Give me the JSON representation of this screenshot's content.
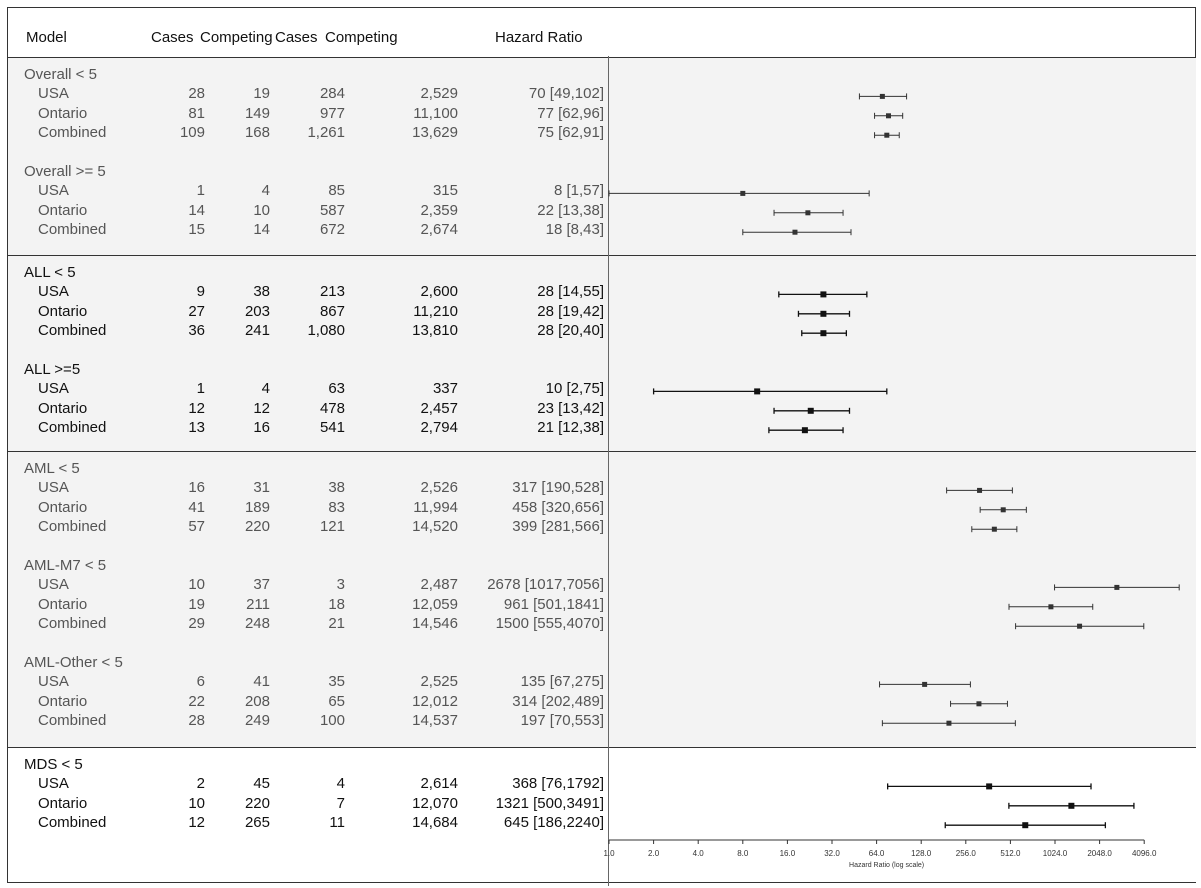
{
  "header": {
    "model": "Model",
    "cases1": "Cases",
    "competing1": "Competing",
    "cases2": "Cases",
    "competing2": "Competing",
    "hazard": "Hazard Ratio"
  },
  "chart_data": {
    "type": "forest",
    "xlabel": "Hazard Ratio (log scale)",
    "x_scale": "log2",
    "xlim": [
      1,
      4096
    ],
    "x_ticks": [
      "1.0",
      "2.0",
      "4.0",
      "8.0",
      "16.0",
      "32.0",
      "64.0",
      "128.0",
      "256.0",
      "512.0",
      "1024.0",
      "2048.0",
      "4096.0"
    ],
    "bands": [
      {
        "groups": [
          {
            "title": "Overall < 5",
            "rows": [
              {
                "label": "USA",
                "cases1": "28",
                "comp1": "19",
                "cases2": "284",
                "comp2": "2,529",
                "hr_text": "70 [49,102]",
                "hr": 70,
                "lo": 49,
                "hi": 102
              },
              {
                "label": "Ontario",
                "cases1": "81",
                "comp1": "149",
                "cases2": "977",
                "comp2": "11,100",
                "hr_text": "77 [62,96]",
                "hr": 77,
                "lo": 62,
                "hi": 96
              },
              {
                "label": "Combined",
                "cases1": "109",
                "comp1": "168",
                "cases2": "1,261",
                "comp2": "13,629",
                "hr_text": "75 [62,91]",
                "hr": 75,
                "lo": 62,
                "hi": 91
              }
            ]
          },
          {
            "title": "Overall >= 5",
            "rows": [
              {
                "label": "USA",
                "cases1": "1",
                "comp1": "4",
                "cases2": "85",
                "comp2": "315",
                "hr_text": "8 [1,57]",
                "hr": 8,
                "lo": 1,
                "hi": 57
              },
              {
                "label": "Ontario",
                "cases1": "14",
                "comp1": "10",
                "cases2": "587",
                "comp2": "2,359",
                "hr_text": "22 [13,38]",
                "hr": 22,
                "lo": 13,
                "hi": 38
              },
              {
                "label": "Combined",
                "cases1": "15",
                "comp1": "14",
                "cases2": "672",
                "comp2": "2,674",
                "hr_text": "18 [8,43]",
                "hr": 18,
                "lo": 8,
                "hi": 43
              }
            ]
          }
        ]
      },
      {
        "groups": [
          {
            "title": "ALL < 5",
            "rows": [
              {
                "label": "USA",
                "cases1": "9",
                "comp1": "38",
                "cases2": "213",
                "comp2": "2,600",
                "hr_text": "28 [14,55]",
                "hr": 28,
                "lo": 14,
                "hi": 55
              },
              {
                "label": "Ontario",
                "cases1": "27",
                "comp1": "203",
                "cases2": "867",
                "comp2": "11,210",
                "hr_text": "28 [19,42]",
                "hr": 28,
                "lo": 19,
                "hi": 42
              },
              {
                "label": "Combined",
                "cases1": "36",
                "comp1": "241",
                "cases2": "1,080",
                "comp2": "13,810",
                "hr_text": "28 [20,40]",
                "hr": 28,
                "lo": 20,
                "hi": 40
              }
            ]
          },
          {
            "title": "ALL >=5",
            "rows": [
              {
                "label": "USA",
                "cases1": "1",
                "comp1": "4",
                "cases2": "63",
                "comp2": "337",
                "hr_text": "10 [2,75]",
                "hr": 10,
                "lo": 2,
                "hi": 75
              },
              {
                "label": "Ontario",
                "cases1": "12",
                "comp1": "12",
                "cases2": "478",
                "comp2": "2,457",
                "hr_text": "23 [13,42]",
                "hr": 23,
                "lo": 13,
                "hi": 42
              },
              {
                "label": "Combined",
                "cases1": "13",
                "comp1": "16",
                "cases2": "541",
                "comp2": "2,794",
                "hr_text": "21 [12,38]",
                "hr": 21,
                "lo": 12,
                "hi": 38
              }
            ]
          }
        ]
      },
      {
        "groups": [
          {
            "title": "AML < 5",
            "rows": [
              {
                "label": "USA",
                "cases1": "16",
                "comp1": "31",
                "cases2": "38",
                "comp2": "2,526",
                "hr_text": "317 [190,528]",
                "hr": 317,
                "lo": 190,
                "hi": 528
              },
              {
                "label": "Ontario",
                "cases1": "41",
                "comp1": "189",
                "cases2": "83",
                "comp2": "11,994",
                "hr_text": "458 [320,656]",
                "hr": 458,
                "lo": 320,
                "hi": 656
              },
              {
                "label": "Combined",
                "cases1": "57",
                "comp1": "220",
                "cases2": "121",
                "comp2": "14,520",
                "hr_text": "399 [281,566]",
                "hr": 399,
                "lo": 281,
                "hi": 566
              }
            ]
          },
          {
            "title": "AML-M7 < 5",
            "rows": [
              {
                "label": "USA",
                "cases1": "10",
                "comp1": "37",
                "cases2": "3",
                "comp2": "2,487",
                "hr_text": "2678 [1017,7056]",
                "hr": 2678,
                "lo": 1017,
                "hi": 7056
              },
              {
                "label": "Ontario",
                "cases1": "19",
                "comp1": "211",
                "cases2": "18",
                "comp2": "12,059",
                "hr_text": "961 [501,1841]",
                "hr": 961,
                "lo": 501,
                "hi": 1841
              },
              {
                "label": "Combined",
                "cases1": "29",
                "comp1": "248",
                "cases2": "21",
                "comp2": "14,546",
                "hr_text": "1500 [555,4070]",
                "hr": 1500,
                "lo": 555,
                "hi": 4070
              }
            ]
          },
          {
            "title": "AML-Other < 5",
            "rows": [
              {
                "label": "USA",
                "cases1": "6",
                "comp1": "41",
                "cases2": "35",
                "comp2": "2,525",
                "hr_text": "135 [67,275]",
                "hr": 135,
                "lo": 67,
                "hi": 275
              },
              {
                "label": "Ontario",
                "cases1": "22",
                "comp1": "208",
                "cases2": "65",
                "comp2": "12,012",
                "hr_text": "314 [202,489]",
                "hr": 314,
                "lo": 202,
                "hi": 489
              },
              {
                "label": "Combined",
                "cases1": "28",
                "comp1": "249",
                "cases2": "100",
                "comp2": "14,537",
                "hr_text": "197 [70,553]",
                "hr": 197,
                "lo": 70,
                "hi": 553
              }
            ]
          }
        ]
      },
      {
        "groups": [
          {
            "title": "MDS < 5",
            "rows": [
              {
                "label": "USA",
                "cases1": "2",
                "comp1": "45",
                "cases2": "4",
                "comp2": "2,614",
                "hr_text": "368 [76,1792]",
                "hr": 368,
                "lo": 76,
                "hi": 1792
              },
              {
                "label": "Ontario",
                "cases1": "10",
                "comp1": "220",
                "cases2": "7",
                "comp2": "12,070",
                "hr_text": "1321 [500,3491]",
                "hr": 1321,
                "lo": 500,
                "hi": 3491
              },
              {
                "label": "Combined",
                "cases1": "12",
                "comp1": "265",
                "cases2": "11",
                "comp2": "14,684",
                "hr_text": "645 [186,2240]",
                "hr": 645,
                "lo": 186,
                "hi": 2240
              }
            ]
          }
        ]
      }
    ]
  }
}
